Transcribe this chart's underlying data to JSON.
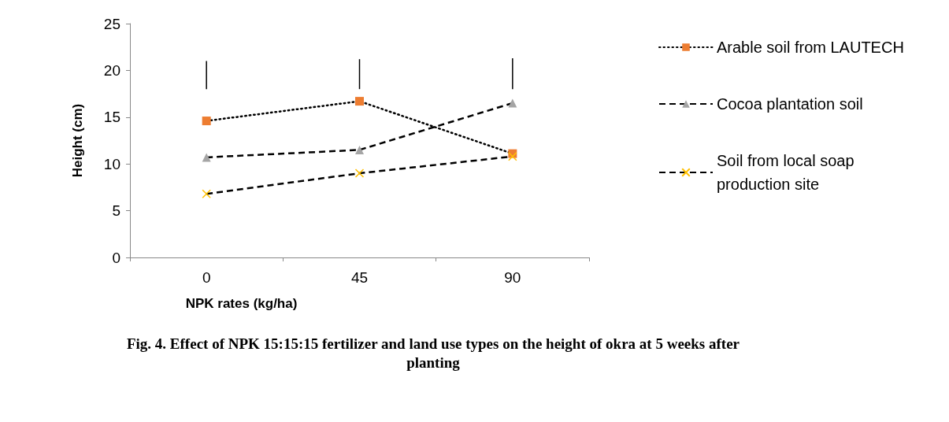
{
  "chart_data": {
    "type": "line",
    "title": "Fig. 4. Effect of NPK 15:15:15 fertilizer and land use types on the height of okra at 5 weeks after planting",
    "xlabel": "NPK rates (kg/ha)",
    "ylabel": "Height (cm)",
    "categories": [
      "0",
      "45",
      "90"
    ],
    "ylim": [
      0,
      25
    ],
    "yticks": [
      0,
      5,
      10,
      15,
      20,
      25
    ],
    "grid": false,
    "legend": "right",
    "series": [
      {
        "name": "Arable soil from LAUTECH",
        "color": "#ed7d31",
        "marker": "square",
        "line_style": "dotted",
        "values": [
          14.6,
          16.7,
          11.1
        ]
      },
      {
        "name": "Cocoa plantation soil",
        "color": "#a5a5a5",
        "marker": "triangle",
        "line_style": "dashed",
        "values": [
          10.7,
          11.5,
          16.5
        ]
      },
      {
        "name": "Soil from local soap production site",
        "color": "#ffc000",
        "marker": "cross",
        "line_style": "dashed",
        "values": [
          6.8,
          9.0,
          10.8
        ]
      },
      {
        "type": "bar",
        "color": "#000000",
        "base": [
          18.0,
          18.0,
          18.0
        ],
        "values": [
          3.0,
          3.2,
          3.3
        ]
      }
    ]
  }
}
